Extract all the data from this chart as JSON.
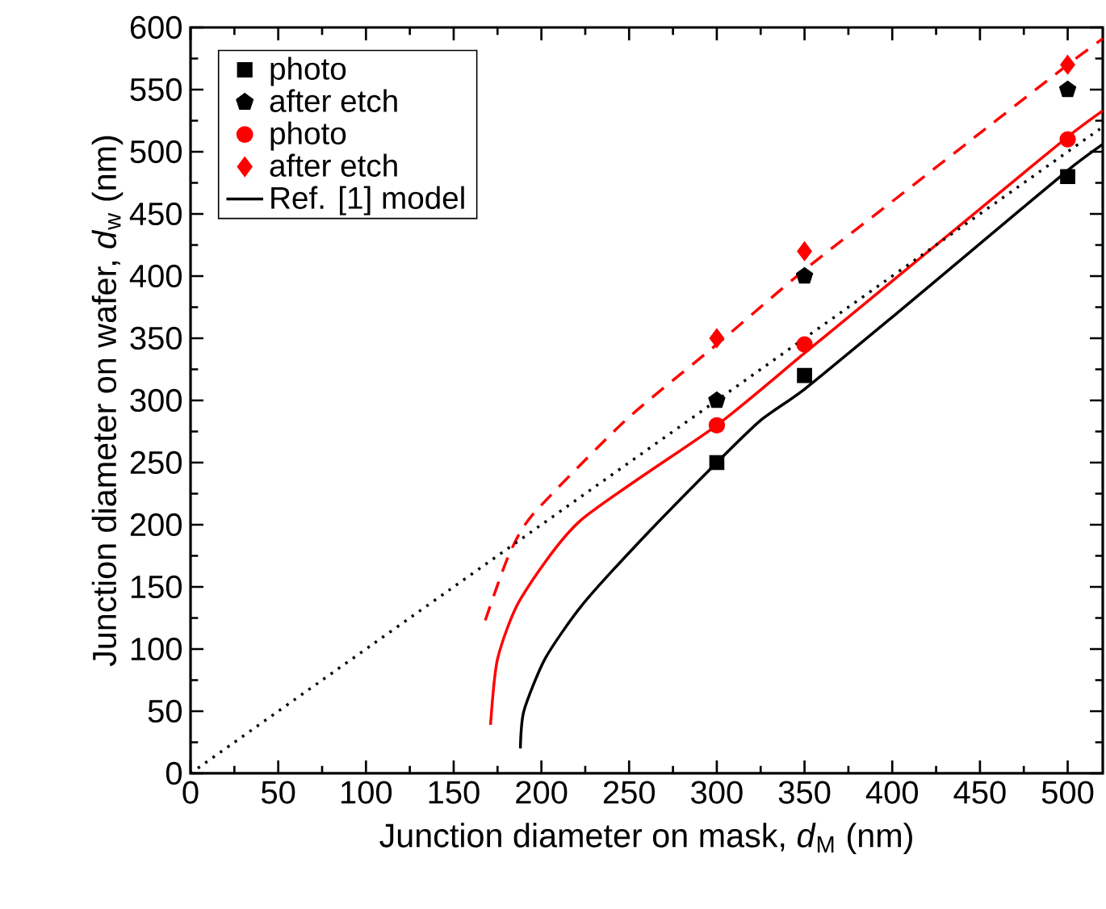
{
  "chart_data": {
    "type": "scatter",
    "xlabel": "Junction diameter on mask, *d*$_{M}$ (nm)",
    "ylabel": "Junction diameter on wafer, *d*$_{w}$ (nm)",
    "xlim": [
      0,
      520
    ],
    "ylim": [
      0,
      600
    ],
    "xticks": [
      0,
      50,
      100,
      150,
      200,
      250,
      300,
      350,
      400,
      450,
      500
    ],
    "yticks": [
      0,
      50,
      100,
      150,
      200,
      250,
      300,
      350,
      400,
      450,
      500,
      550,
      600
    ],
    "legend": "top left",
    "series": [
      {
        "name": "photo",
        "type": "scatter",
        "marker": "square",
        "color": "#000000",
        "x": [
          300,
          350,
          500
        ],
        "values": [
          250,
          320,
          480
        ]
      },
      {
        "name": "after etch",
        "type": "scatter",
        "color": "#000000",
        "x": [
          300,
          350,
          500
        ],
        "values": [
          300,
          400,
          550
        ]
      },
      {
        "name": "photo",
        "type": "scatter",
        "marker": "circle",
        "color": "#ff0000",
        "x": [
          300,
          350,
          500
        ],
        "values": [
          280,
          345,
          510
        ]
      },
      {
        "name": "after etch",
        "type": "scatter",
        "marker": "diamond",
        "color": "#ff0000",
        "x": [
          300,
          350,
          500
        ],
        "values": [
          350,
          420,
          570
        ]
      },
      {
        "name": "Ref. [1] model",
        "type": "line",
        "line_style": "solid",
        "color": "#000000",
        "x": [
          188,
          190,
          202,
          223,
          257,
          300,
          325,
          350,
          400,
          450,
          500,
          520
        ],
        "values": [
          20,
          50,
          92,
          135,
          188,
          250,
          284,
          309,
          367,
          426,
          485,
          506
        ]
      },
      {
        "type": "line",
        "line_style": "solid",
        "color": "#ff0000",
        "x": [
          171,
          175,
          188,
          222,
          300,
          350,
          400,
          450,
          500,
          520
        ],
        "values": [
          39,
          92,
          140,
          203,
          280,
          338,
          396,
          454,
          512,
          533
        ]
      },
      {
        "type": "line",
        "line_style": "dashed",
        "color": "#ff0000",
        "x": [
          168,
          181,
          195,
          248,
          300,
          350,
          400,
          450,
          500,
          520
        ],
        "values": [
          123,
          174,
          208,
          284,
          345,
          405,
          460,
          515,
          570,
          591
        ]
      },
      {
        "type": "line",
        "line_style": "dotted",
        "color": "#000000",
        "x": [
          0,
          520
        ],
        "values": [
          0,
          520
        ]
      }
    ]
  }
}
